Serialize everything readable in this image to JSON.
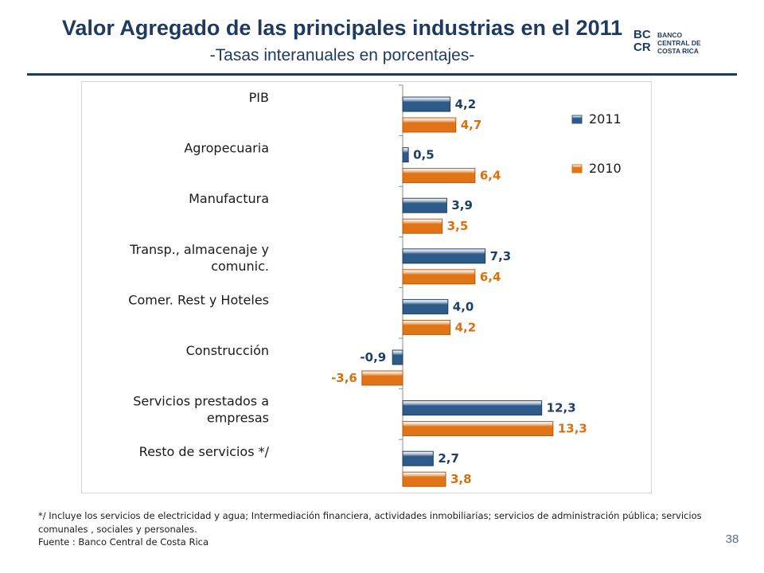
{
  "slide": {
    "title": "Valor Agregado de las principales industrias en el 2011",
    "subtitle": "-Tasas interanuales en porcentajes-",
    "page_number": "38"
  },
  "logo": {
    "mark_top": "BC",
    "mark_bottom": "CR",
    "name_lines": [
      "BANCO",
      "CENTRAL DE",
      "COSTA RICA"
    ]
  },
  "chart_data": {
    "type": "bar",
    "orientation": "horizontal",
    "title": "",
    "xlabel": "",
    "ylabel": "",
    "categories": [
      [
        "PIB"
      ],
      [
        "Agropecuaria"
      ],
      [
        "Manufactura"
      ],
      [
        "Transp., almacenaje y",
        "comunic."
      ],
      [
        "Comer. Rest y Hoteles"
      ],
      [
        "Construcción"
      ],
      [
        "Servicios prestados a",
        "empresas"
      ],
      [
        "Resto de servicios */"
      ]
    ],
    "series": [
      {
        "name": "2011",
        "color": "#2e5a8a",
        "label_color": "#1f3f66",
        "values": [
          4.2,
          0.5,
          3.9,
          7.3,
          4.0,
          -0.9,
          12.3,
          2.7
        ],
        "labels": [
          "4,2",
          "0,5",
          "3,9",
          "7,3",
          "4,0",
          "-0,9",
          "12,3",
          "2,7"
        ]
      },
      {
        "name": "2010",
        "color": "#e07416",
        "label_color": "#d9700f",
        "values": [
          4.7,
          6.4,
          3.5,
          6.4,
          4.2,
          -3.6,
          13.3,
          3.8
        ],
        "labels": [
          "4,7",
          "6,4",
          "3,5",
          "6,4",
          "4,2",
          "-3,6",
          "13,3",
          "3,8"
        ]
      }
    ],
    "xlim": [
      -5,
      20
    ],
    "grid": false,
    "legend_position": "top-right"
  },
  "footnote": {
    "note": "*/ Incluye los servicios de electricidad y agua; Intermediación financiera, actividades inmobiliarias; servicios de administración pública; servicios comunales , sociales y personales.",
    "source": "Fuente : Banco Central de Costa Rica"
  }
}
